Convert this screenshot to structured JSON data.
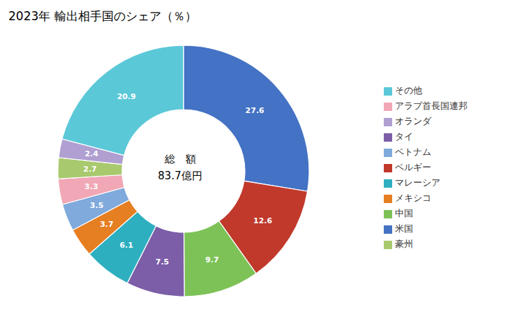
{
  "chart_data": {
    "type": "pie",
    "title": "2023年 輸出相手国のシェア（％）",
    "categories": [
      "米国",
      "ベルギー",
      "中国",
      "タイ",
      "マレーシア",
      "メキシコ",
      "ベトナム",
      "アラブ首長国連邦",
      "豪州",
      "オランダ",
      "その他"
    ],
    "values": [
      27.6,
      12.6,
      9.7,
      7.5,
      6.1,
      3.7,
      3.5,
      3.3,
      2.7,
      2.4,
      20.9
    ],
    "colors": [
      "#4472C4",
      "#C0392B",
      "#7DC257",
      "#7B5EA7",
      "#2EAFC0",
      "#E67E22",
      "#7FAADB",
      "#F1A7B5",
      "#A8C96E",
      "#B09FD1",
      "#5BC8D8"
    ],
    "annotations": [
      "総　額",
      "83.7億円"
    ],
    "data_labels": true,
    "legend": "right"
  }
}
